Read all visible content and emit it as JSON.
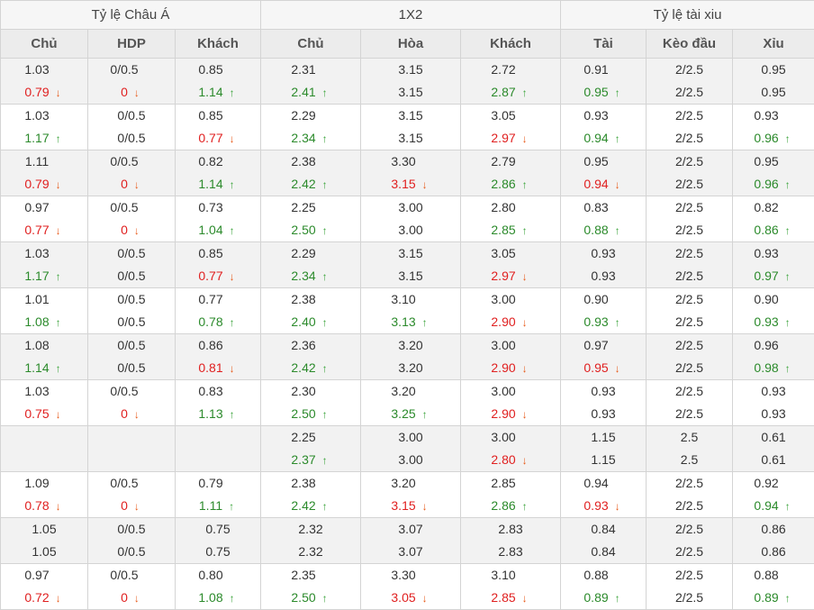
{
  "headers": {
    "groups": [
      "Tỷ lệ Châu Á",
      "1X2",
      "Tỷ lệ tài xiu"
    ],
    "columns": [
      "Chủ",
      "HDP",
      "Khách",
      "Chủ",
      "Hòa",
      "Khách",
      "Tài",
      "Kèo đầu",
      "Xỉu"
    ]
  },
  "rows": [
    [
      [
        "1.03",
        "0.79",
        "d"
      ],
      [
        "0/0.5",
        "0",
        "d"
      ],
      [
        "0.85",
        "1.14",
        "u"
      ],
      [
        "2.31",
        "2.41",
        "u"
      ],
      [
        "3.15",
        "3.15",
        ""
      ],
      [
        "2.72",
        "2.87",
        "u"
      ],
      [
        "0.91",
        "0.95",
        "u"
      ],
      [
        "2/2.5",
        "2/2.5",
        ""
      ],
      [
        "0.95",
        "0.95",
        ""
      ]
    ],
    [
      [
        "1.03",
        "1.17",
        "u"
      ],
      [
        "0/0.5",
        "0/0.5",
        ""
      ],
      [
        "0.85",
        "0.77",
        "d"
      ],
      [
        "2.29",
        "2.34",
        "u"
      ],
      [
        "3.15",
        "3.15",
        ""
      ],
      [
        "3.05",
        "2.97",
        "d"
      ],
      [
        "0.93",
        "0.94",
        "u"
      ],
      [
        "2/2.5",
        "2/2.5",
        ""
      ],
      [
        "0.93",
        "0.96",
        "u"
      ]
    ],
    [
      [
        "1.11",
        "0.79",
        "d"
      ],
      [
        "0/0.5",
        "0",
        "d"
      ],
      [
        "0.82",
        "1.14",
        "u"
      ],
      [
        "2.38",
        "2.42",
        "u"
      ],
      [
        "3.30",
        "3.15",
        "d"
      ],
      [
        "2.79",
        "2.86",
        "u"
      ],
      [
        "0.95",
        "0.94",
        "d"
      ],
      [
        "2/2.5",
        "2/2.5",
        ""
      ],
      [
        "0.95",
        "0.96",
        "u"
      ]
    ],
    [
      [
        "0.97",
        "0.77",
        "d"
      ],
      [
        "0/0.5",
        "0",
        "d"
      ],
      [
        "0.73",
        "1.04",
        "u"
      ],
      [
        "2.25",
        "2.50",
        "u"
      ],
      [
        "3.00",
        "3.00",
        ""
      ],
      [
        "2.80",
        "2.85",
        "u"
      ],
      [
        "0.83",
        "0.88",
        "u"
      ],
      [
        "2/2.5",
        "2/2.5",
        ""
      ],
      [
        "0.82",
        "0.86",
        "u"
      ]
    ],
    [
      [
        "1.03",
        "1.17",
        "u"
      ],
      [
        "0/0.5",
        "0/0.5",
        ""
      ],
      [
        "0.85",
        "0.77",
        "d"
      ],
      [
        "2.29",
        "2.34",
        "u"
      ],
      [
        "3.15",
        "3.15",
        ""
      ],
      [
        "3.05",
        "2.97",
        "d"
      ],
      [
        "0.93",
        "0.93",
        ""
      ],
      [
        "2/2.5",
        "2/2.5",
        ""
      ],
      [
        "0.93",
        "0.97",
        "u"
      ]
    ],
    [
      [
        "1.01",
        "1.08",
        "u"
      ],
      [
        "0/0.5",
        "0/0.5",
        ""
      ],
      [
        "0.77",
        "0.78",
        "u"
      ],
      [
        "2.38",
        "2.40",
        "u"
      ],
      [
        "3.10",
        "3.13",
        "u"
      ],
      [
        "3.00",
        "2.90",
        "d"
      ],
      [
        "0.90",
        "0.93",
        "u"
      ],
      [
        "2/2.5",
        "2/2.5",
        ""
      ],
      [
        "0.90",
        "0.93",
        "u"
      ]
    ],
    [
      [
        "1.08",
        "1.14",
        "u"
      ],
      [
        "0/0.5",
        "0/0.5",
        ""
      ],
      [
        "0.86",
        "0.81",
        "d"
      ],
      [
        "2.36",
        "2.42",
        "u"
      ],
      [
        "3.20",
        "3.20",
        ""
      ],
      [
        "3.00",
        "2.90",
        "d"
      ],
      [
        "0.97",
        "0.95",
        "d"
      ],
      [
        "2/2.5",
        "2/2.5",
        ""
      ],
      [
        "0.96",
        "0.98",
        "u"
      ]
    ],
    [
      [
        "1.03",
        "0.75",
        "d"
      ],
      [
        "0/0.5",
        "0",
        "d"
      ],
      [
        "0.83",
        "1.13",
        "u"
      ],
      [
        "2.30",
        "2.50",
        "u"
      ],
      [
        "3.20",
        "3.25",
        "u"
      ],
      [
        "3.00",
        "2.90",
        "d"
      ],
      [
        "0.93",
        "0.93",
        ""
      ],
      [
        "2/2.5",
        "2/2.5",
        ""
      ],
      [
        "0.93",
        "0.93",
        ""
      ]
    ],
    [
      [
        "",
        "",
        ""
      ],
      [
        "",
        "",
        ""
      ],
      [
        "",
        "",
        ""
      ],
      [
        "2.25",
        "2.37",
        "u"
      ],
      [
        "3.00",
        "3.00",
        ""
      ],
      [
        "3.00",
        "2.80",
        "d"
      ],
      [
        "1.15",
        "1.15",
        ""
      ],
      [
        "2.5",
        "2.5",
        ""
      ],
      [
        "0.61",
        "0.61",
        ""
      ]
    ],
    [
      [
        "1.09",
        "0.78",
        "d"
      ],
      [
        "0/0.5",
        "0",
        "d"
      ],
      [
        "0.79",
        "1.11",
        "u"
      ],
      [
        "2.38",
        "2.42",
        "u"
      ],
      [
        "3.20",
        "3.15",
        "d"
      ],
      [
        "2.85",
        "2.86",
        "u"
      ],
      [
        "0.94",
        "0.93",
        "d"
      ],
      [
        "2/2.5",
        "2/2.5",
        ""
      ],
      [
        "0.92",
        "0.94",
        "u"
      ]
    ],
    [
      [
        "1.05",
        "1.05",
        ""
      ],
      [
        "0/0.5",
        "0/0.5",
        ""
      ],
      [
        "0.75",
        "0.75",
        ""
      ],
      [
        "2.32",
        "2.32",
        ""
      ],
      [
        "3.07",
        "3.07",
        ""
      ],
      [
        "2.83",
        "2.83",
        ""
      ],
      [
        "0.84",
        "0.84",
        ""
      ],
      [
        "2/2.5",
        "2/2.5",
        ""
      ],
      [
        "0.86",
        "0.86",
        ""
      ]
    ],
    [
      [
        "0.97",
        "0.72",
        "d"
      ],
      [
        "0/0.5",
        "0",
        "d"
      ],
      [
        "0.80",
        "1.08",
        "u"
      ],
      [
        "2.35",
        "2.50",
        "u"
      ],
      [
        "3.30",
        "3.05",
        "d"
      ],
      [
        "3.10",
        "2.85",
        "d"
      ],
      [
        "0.88",
        "0.89",
        "u"
      ],
      [
        "2/2.5",
        "2/2.5",
        ""
      ],
      [
        "0.88",
        "0.89",
        "u"
      ]
    ]
  ]
}
